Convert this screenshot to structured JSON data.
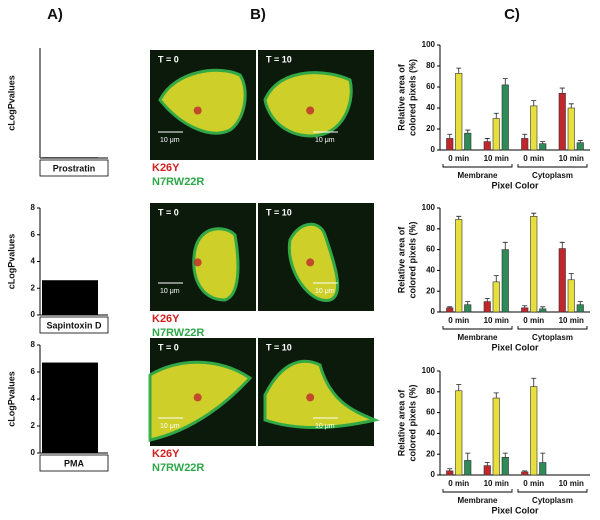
{
  "panel_labels": [
    "A)",
    "B)",
    "C)"
  ],
  "micrographs": [
    {
      "time_labels": [
        "T = 0",
        "T = 10"
      ],
      "scale_labels": [
        "10 μm",
        "10 μm"
      ],
      "legend": [
        "K26Y",
        "N7RW22R"
      ]
    },
    {
      "time_labels": [
        "T = 0",
        "T = 10"
      ],
      "scale_labels": [
        "10 μm",
        "10 μm"
      ],
      "legend": [
        "K26Y",
        "N7RW22R"
      ]
    },
    {
      "time_labels": [
        "T = 0",
        "T = 10"
      ],
      "scale_labels": [
        "10 μm",
        "10 μm"
      ],
      "legend": [
        "K26Y",
        "N7RW22R"
      ]
    }
  ],
  "chart_data": [
    {
      "type": "bar",
      "y_label": "cLogPvalues",
      "categories": [
        "Prostratin"
      ],
      "values": [
        0.05
      ],
      "color": "#000000",
      "ylim": [
        0,
        8
      ]
    },
    {
      "type": "bar",
      "y_label": "cLogPvalues",
      "categories": [
        "Sapintoxin D"
      ],
      "values": [
        2.6
      ],
      "color": "#000000",
      "ylim": [
        0,
        8
      ],
      "yticks": [
        0,
        2,
        4,
        6,
        8
      ]
    },
    {
      "type": "bar",
      "y_label": "cLogPvalues",
      "categories": [
        "PMA"
      ],
      "values": [
        6.7
      ],
      "color": "#000000",
      "ylim": [
        0,
        8
      ],
      "yticks": [
        0,
        2,
        4,
        6,
        8
      ]
    },
    {
      "type": "grouped_bar",
      "y_label": [
        "Relative area of",
        "colored pixels (%)"
      ],
      "x_label": "Pixel Color",
      "categories": [
        "0 min",
        "10 min",
        "0 min",
        "10 min"
      ],
      "groups": [
        "Membrane",
        "Cytoplasm"
      ],
      "ylim": [
        0,
        100
      ],
      "yticks": [
        0,
        20,
        40,
        60,
        80,
        100
      ],
      "series": [
        {
          "color": "#c0272d",
          "values": [
            11,
            8,
            11,
            54
          ],
          "errors": [
            4,
            3,
            4,
            5
          ]
        },
        {
          "color": "#e6df3c",
          "values": [
            73,
            30,
            42,
            40
          ],
          "errors": [
            5,
            5,
            5,
            4
          ]
        },
        {
          "color": "#2e8b57",
          "values": [
            16,
            62,
            6,
            7
          ],
          "errors": [
            3,
            6,
            2,
            2
          ]
        }
      ]
    },
    {
      "type": "grouped_bar",
      "y_label": [
        "Relative area of",
        "colored pixels (%)"
      ],
      "x_label": "Pixel Color",
      "categories": [
        "0 min",
        "10 min",
        "0 min",
        "10 min"
      ],
      "groups": [
        "Membrane",
        "Cytoplasm"
      ],
      "ylim": [
        0,
        100
      ],
      "yticks": [
        0,
        20,
        40,
        60,
        80,
        100
      ],
      "series": [
        {
          "color": "#c0272d",
          "values": [
            4,
            10,
            4,
            61
          ],
          "errors": [
            1,
            3,
            2,
            6
          ]
        },
        {
          "color": "#e6df3c",
          "values": [
            89,
            29,
            92,
            31
          ],
          "errors": [
            3,
            6,
            3,
            6
          ]
        },
        {
          "color": "#2e8b57",
          "values": [
            7,
            60,
            3,
            7
          ],
          "errors": [
            3,
            7,
            2,
            3
          ]
        }
      ]
    },
    {
      "type": "grouped_bar",
      "y_label": [
        "Relative area of",
        "colored pixels (%)"
      ],
      "x_label": "Pixel Color",
      "categories": [
        "0 min",
        "10 min",
        "0 min",
        "10 min"
      ],
      "groups": [
        "Membrane",
        "Cytoplasm"
      ],
      "ylim": [
        0,
        100
      ],
      "yticks": [
        0,
        20,
        40,
        60,
        80,
        100
      ],
      "series": [
        {
          "color": "#c0272d",
          "values": [
            4,
            9,
            3,
            null
          ],
          "errors": [
            2,
            3,
            1,
            null
          ]
        },
        {
          "color": "#e6df3c",
          "values": [
            81,
            74,
            85,
            null
          ],
          "errors": [
            6,
            5,
            8,
            null
          ]
        },
        {
          "color": "#2e8b57",
          "values": [
            14,
            17,
            12,
            null
          ],
          "errors": [
            7,
            4,
            9,
            null
          ]
        }
      ]
    }
  ]
}
